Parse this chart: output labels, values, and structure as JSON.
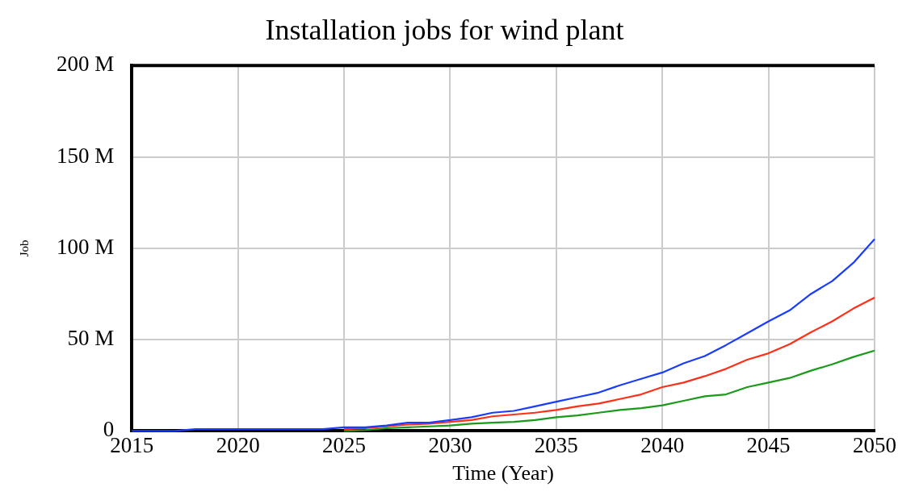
{
  "chart_data": {
    "type": "line",
    "title": "Installation jobs for wind plant",
    "xlabel": "Time (Year)",
    "ylabel": "Job",
    "x": [
      2015,
      2016,
      2017,
      2018,
      2019,
      2020,
      2021,
      2022,
      2023,
      2024,
      2025,
      2026,
      2027,
      2028,
      2029,
      2030,
      2031,
      2032,
      2033,
      2034,
      2035,
      2036,
      2037,
      2038,
      2039,
      2040,
      2041,
      2042,
      2043,
      2044,
      2045,
      2046,
      2047,
      2048,
      2049,
      2050
    ],
    "series": [
      {
        "color": "#1a3cff",
        "values": [
          0,
          0,
          0,
          1,
          1,
          1,
          1,
          1,
          1,
          1,
          2,
          2,
          3,
          4.5,
          4.5,
          6,
          7.5,
          10,
          11,
          13.5,
          16,
          18.5,
          21,
          25,
          28.5,
          32,
          37,
          41,
          47,
          53.5,
          60,
          66,
          75,
          82,
          92,
          105
        ]
      },
      {
        "color": "#ff3019",
        "values": [
          null,
          null,
          null,
          null,
          null,
          null,
          null,
          null,
          null,
          null,
          1,
          1.5,
          2.5,
          3.5,
          4,
          5,
          6,
          8,
          9,
          10,
          11.5,
          13.5,
          15,
          17.5,
          20,
          24,
          26.5,
          30,
          34,
          39,
          42.5,
          47.5,
          54,
          60,
          67,
          73
        ]
      },
      {
        "color": "#1a9a1a",
        "values": [
          null,
          null,
          null,
          null,
          null,
          null,
          null,
          null,
          null,
          null,
          0,
          0.5,
          1.5,
          2,
          2.5,
          3,
          4,
          4.5,
          5,
          6,
          7.5,
          8.5,
          10,
          11.5,
          12.5,
          14,
          16.5,
          19,
          20,
          24,
          26.5,
          29,
          33,
          36.5,
          40.5,
          44
        ]
      }
    ],
    "xlim": [
      2015,
      2050
    ],
    "xticks": [
      2015,
      2020,
      2025,
      2030,
      2035,
      2040,
      2045,
      2050
    ],
    "ylim": [
      0,
      200
    ],
    "yticks": [
      {
        "value": 0,
        "label": "0"
      },
      {
        "value": 50,
        "label": "50 M"
      },
      {
        "value": 100,
        "label": "100 M"
      },
      {
        "value": 150,
        "label": "150 M"
      },
      {
        "value": 200,
        "label": "200 M"
      }
    ],
    "grid": true,
    "legend": false,
    "marker": "none",
    "line_style": "solid"
  }
}
